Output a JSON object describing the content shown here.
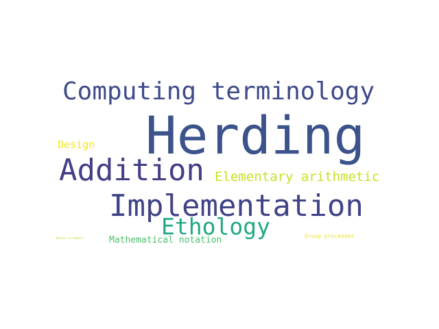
{
  "words": [
    {
      "id": "w-herding",
      "text": "Herding",
      "color": "#3b528b"
    },
    {
      "id": "w-computing",
      "text": "Computing terminology",
      "color": "#3e4a89"
    },
    {
      "id": "w-addition",
      "text": "Addition",
      "color": "#433e85"
    },
    {
      "id": "w-implementation",
      "text": "Implementation",
      "color": "#404387"
    },
    {
      "id": "w-ethology",
      "text": "Ethology",
      "color": "#22a884"
    },
    {
      "id": "w-elementary",
      "text": "Elementary arithmetic",
      "color": "#c8e020"
    },
    {
      "id": "w-design",
      "text": "Design",
      "color": "#f2e51d"
    },
    {
      "id": "w-mathnotation",
      "text": "Mathematical notation",
      "color": "#4ac16d"
    },
    {
      "id": "w-group",
      "text": "Group processes",
      "color": "#e5e419"
    },
    {
      "id": "w-mentalarith",
      "text": "Mental arithmetic",
      "color": "#bddf26"
    }
  ]
}
